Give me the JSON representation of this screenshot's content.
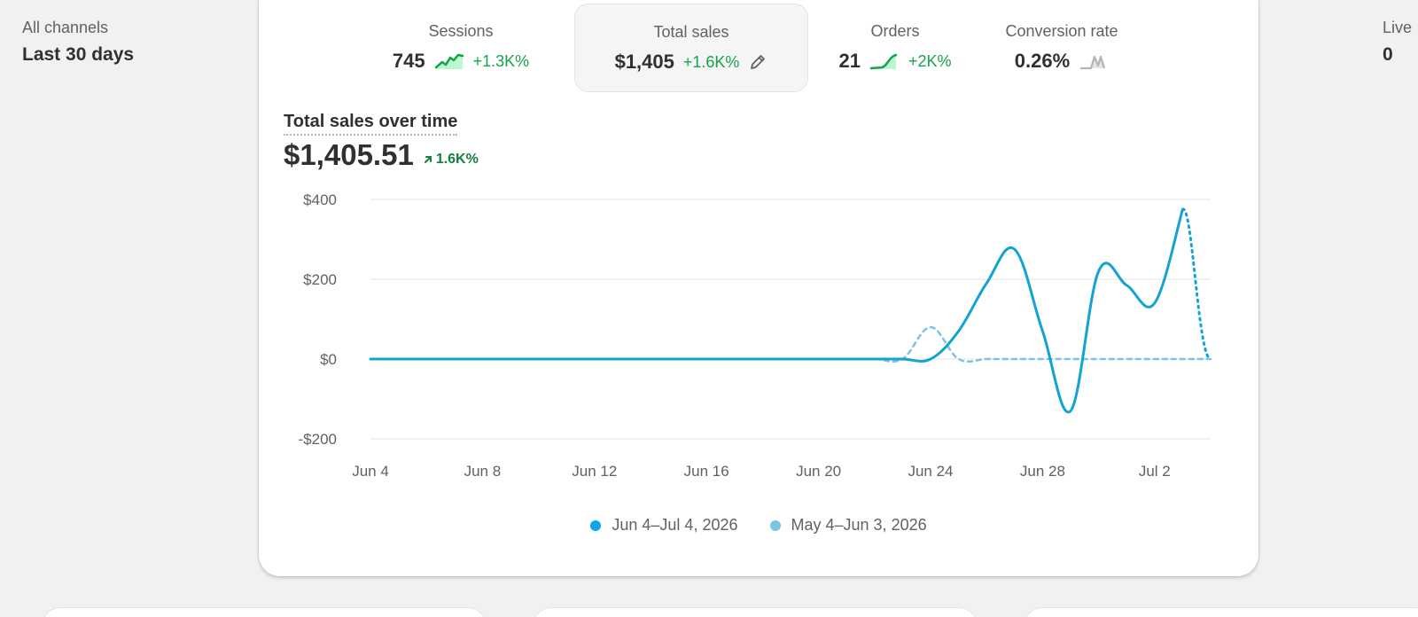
{
  "filters": {
    "channel": "All channels",
    "period": "Last 30 days"
  },
  "right_clip": {
    "label": "Live",
    "value": "0"
  },
  "metrics": [
    {
      "label": "Sessions",
      "value": "745",
      "change": "+1.3K%",
      "spark_icon": "sparkline-up-icon",
      "active": false
    },
    {
      "label": "Total sales",
      "value": "$1,405",
      "change": "+1.6K%",
      "spark_icon": "pencil-icon",
      "active": true
    },
    {
      "label": "Orders",
      "value": "21",
      "change": "+2K%",
      "spark_icon": "sparkline-up-icon",
      "active": false
    },
    {
      "label": "Conversion rate",
      "value": "0.26%",
      "change": "",
      "spark_icon": "sparkline-flat-icon",
      "active": false
    }
  ],
  "chart_header": {
    "title": "Total sales over time",
    "total": "$1,405.51",
    "change": "1.6K%"
  },
  "colors": {
    "current": "#0ea5e9",
    "line_current": "#13a2d4",
    "previous": "#7cc4e4",
    "positive": "#16a34a"
  },
  "chart_data": {
    "type": "line",
    "ylim": [
      -200,
      400
    ],
    "y_ticks": [
      {
        "value": 400,
        "label": "$400"
      },
      {
        "value": 200,
        "label": "$200"
      },
      {
        "value": 0,
        "label": "$0"
      },
      {
        "value": -200,
        "label": "-$200"
      }
    ],
    "x_ticks": [
      {
        "label": "Jun 4",
        "day": 0
      },
      {
        "label": "Jun 8",
        "day": 4
      },
      {
        "label": "Jun 12",
        "day": 8
      },
      {
        "label": "Jun 16",
        "day": 12
      },
      {
        "label": "Jun 20",
        "day": 16
      },
      {
        "label": "Jun 24",
        "day": 20
      },
      {
        "label": "Jun 28",
        "day": 24
      },
      {
        "label": "Jul 2",
        "day": 28
      }
    ],
    "x_max_day": 30,
    "series": [
      {
        "name": "Jun 4–Jul 4, 2026",
        "points": [
          [
            0,
            0
          ],
          [
            1,
            0
          ],
          [
            2,
            0
          ],
          [
            3,
            0
          ],
          [
            4,
            0
          ],
          [
            5,
            0
          ],
          [
            6,
            0
          ],
          [
            7,
            0
          ],
          [
            8,
            0
          ],
          [
            9,
            0
          ],
          [
            10,
            0
          ],
          [
            11,
            0
          ],
          [
            12,
            0
          ],
          [
            13,
            0
          ],
          [
            14,
            0
          ],
          [
            15,
            0
          ],
          [
            16,
            0
          ],
          [
            17,
            0
          ],
          [
            18,
            0
          ],
          [
            19,
            0
          ],
          [
            20,
            0
          ],
          [
            21,
            70
          ],
          [
            22,
            190
          ],
          [
            23,
            275
          ],
          [
            24,
            70
          ],
          [
            25,
            -130
          ],
          [
            26,
            220
          ],
          [
            27,
            185
          ],
          [
            28,
            140
          ],
          [
            29,
            375
          ],
          [
            30,
            0
          ]
        ],
        "dotted_last_segment": true
      },
      {
        "name": "May 4–Jun 3, 2026",
        "points": [
          [
            0,
            0
          ],
          [
            1,
            0
          ],
          [
            2,
            0
          ],
          [
            3,
            0
          ],
          [
            4,
            0
          ],
          [
            5,
            0
          ],
          [
            6,
            0
          ],
          [
            7,
            0
          ],
          [
            8,
            0
          ],
          [
            9,
            0
          ],
          [
            10,
            0
          ],
          [
            11,
            0
          ],
          [
            12,
            0
          ],
          [
            13,
            0
          ],
          [
            14,
            0
          ],
          [
            15,
            0
          ],
          [
            16,
            0
          ],
          [
            17,
            0
          ],
          [
            18,
            0
          ],
          [
            19,
            0
          ],
          [
            20,
            80
          ],
          [
            21,
            0
          ],
          [
            22,
            0
          ],
          [
            23,
            0
          ],
          [
            24,
            0
          ],
          [
            25,
            0
          ],
          [
            26,
            0
          ],
          [
            27,
            0
          ],
          [
            28,
            0
          ],
          [
            29,
            0
          ],
          [
            30,
            0
          ]
        ],
        "dotted_last_segment": false
      }
    ]
  }
}
